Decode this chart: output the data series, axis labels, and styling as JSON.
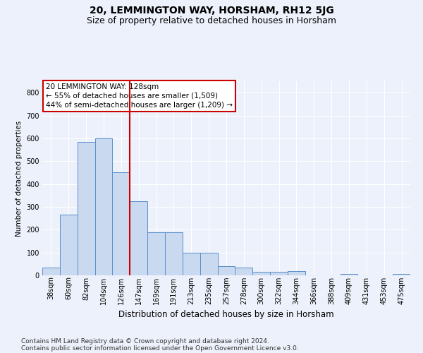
{
  "title": "20, LEMMINGTON WAY, HORSHAM, RH12 5JG",
  "subtitle": "Size of property relative to detached houses in Horsham",
  "xlabel": "Distribution of detached houses by size in Horsham",
  "ylabel": "Number of detached properties",
  "categories": [
    "38sqm",
    "60sqm",
    "82sqm",
    "104sqm",
    "126sqm",
    "147sqm",
    "169sqm",
    "191sqm",
    "213sqm",
    "235sqm",
    "257sqm",
    "278sqm",
    "300sqm",
    "322sqm",
    "344sqm",
    "366sqm",
    "388sqm",
    "409sqm",
    "431sqm",
    "453sqm",
    "475sqm"
  ],
  "values": [
    35,
    265,
    585,
    600,
    450,
    325,
    190,
    190,
    100,
    100,
    40,
    35,
    15,
    15,
    20,
    0,
    0,
    5,
    0,
    0,
    5
  ],
  "bar_color": "#c9d9ef",
  "bar_edge_color": "#5b8fc9",
  "vline_color": "#cc0000",
  "vline_x_index": 4,
  "annotation_line1": "20 LEMMINGTON WAY: 128sqm",
  "annotation_line2": "← 55% of detached houses are smaller (1,509)",
  "annotation_line3": "44% of semi-detached houses are larger (1,209) →",
  "annotation_box_facecolor": "#ffffff",
  "annotation_box_edgecolor": "#cc0000",
  "ylim": [
    0,
    850
  ],
  "yticks": [
    0,
    100,
    200,
    300,
    400,
    500,
    600,
    700,
    800
  ],
  "title_fontsize": 10,
  "subtitle_fontsize": 9,
  "xlabel_fontsize": 8.5,
  "ylabel_fontsize": 7.5,
  "tick_fontsize": 7,
  "annotation_fontsize": 7.5,
  "footer_line1": "Contains HM Land Registry data © Crown copyright and database right 2024.",
  "footer_line2": "Contains public sector information licensed under the Open Government Licence v3.0.",
  "footer_fontsize": 6.5,
  "bg_color": "#edf1fb",
  "grid_color": "#ffffff"
}
